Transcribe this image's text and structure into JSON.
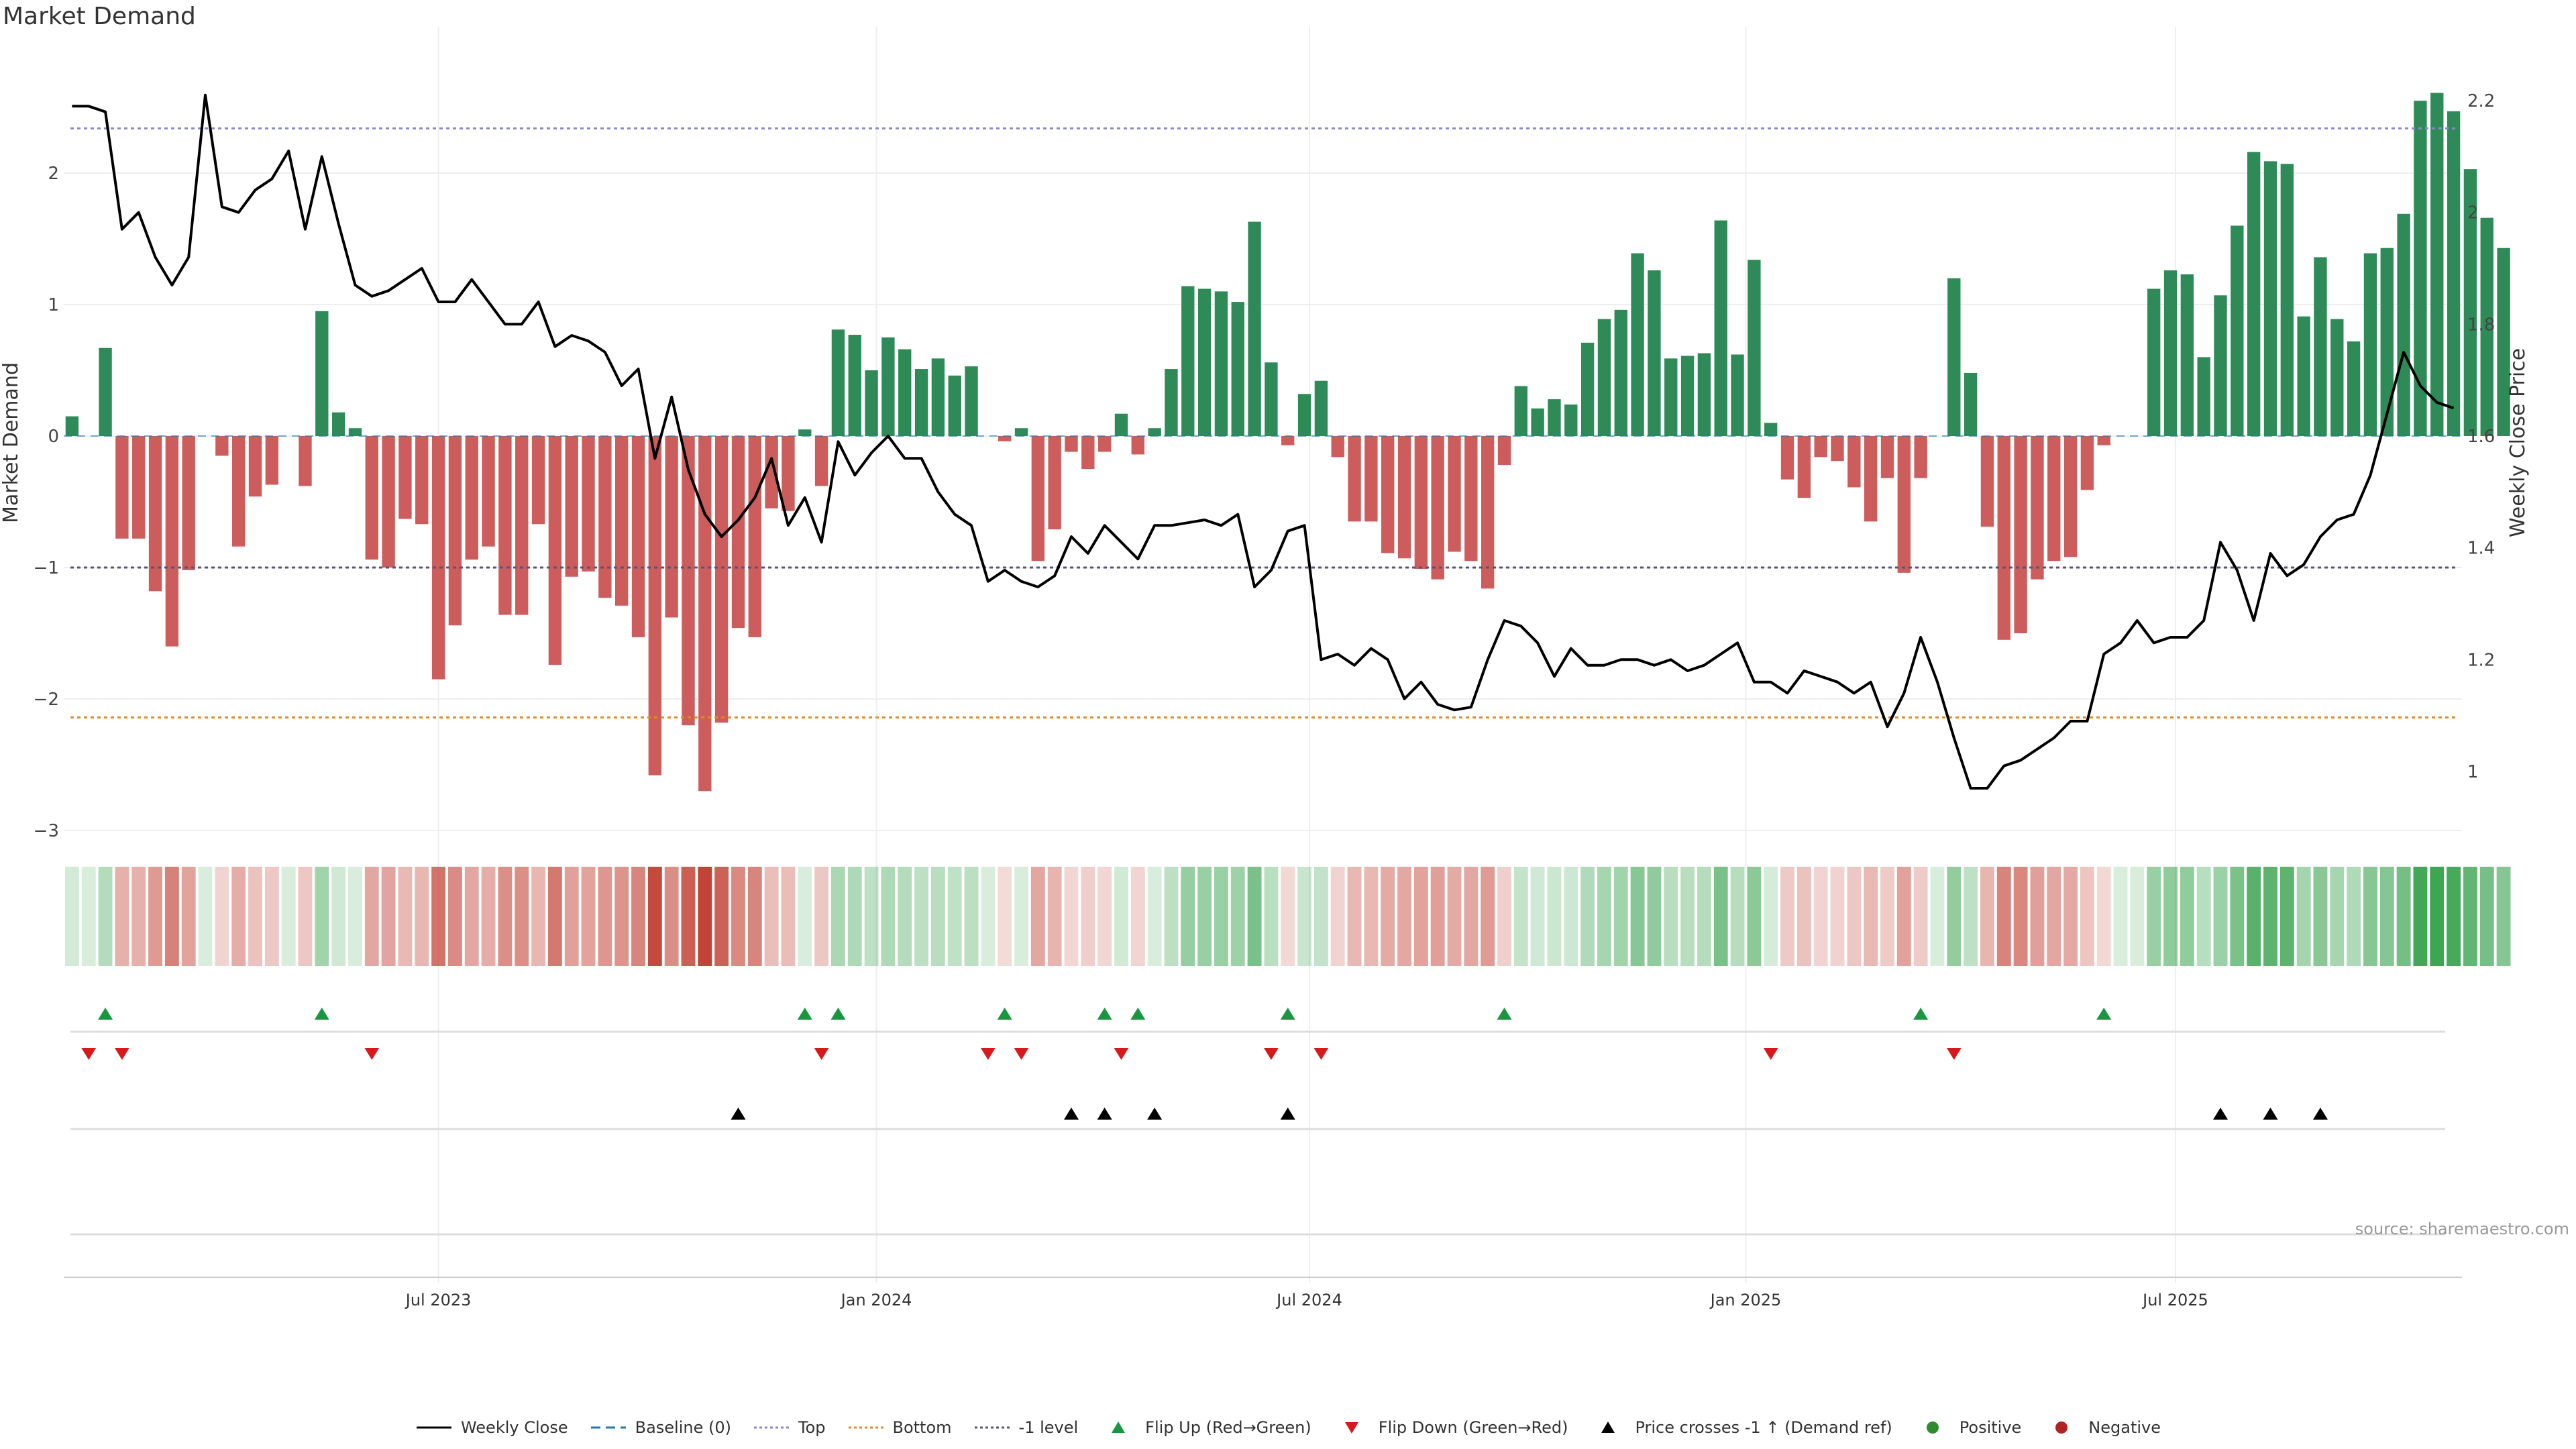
{
  "chart_data": {
    "type": "bar+line",
    "title": "Market Demand",
    "source": "source: sharemaestro.com",
    "left_axis": {
      "label": "Market Demand",
      "range": [
        -3.2,
        2.8
      ],
      "ticks": [
        2,
        1,
        0,
        -1,
        -2,
        -3
      ],
      "tick_labels": [
        "2",
        "1",
        "0",
        "−1",
        "−2",
        "−3"
      ]
    },
    "right_axis": {
      "label": "Weekly Close Price",
      "range": [
        0.915,
        2.27
      ],
      "ticks": [
        2.2,
        2,
        1.8,
        1.6,
        1.4,
        1.2,
        1
      ],
      "tick_labels": [
        "2.2",
        "2",
        "1.8",
        "1.6",
        "1.4",
        "1.2",
        "1"
      ]
    },
    "x_axis": {
      "labels": [
        "Jul 2023",
        "Jan 2024",
        "Jul 2024",
        "Jan 2025",
        "Jul 2025"
      ],
      "label_week_index": [
        22.5,
        48.8,
        74.8,
        101,
        126.8
      ]
    },
    "reference_lines": {
      "top": 2.34,
      "bottom": -2.14,
      "minus1": -1.0,
      "baseline": 0
    },
    "weeks": 144,
    "demand": [
      0.15,
      0,
      0.67,
      -0.78,
      -0.78,
      -1.18,
      -1.6,
      -1.02,
      0,
      -0.15,
      -0.84,
      -0.46,
      -0.37,
      0,
      -0.38,
      0.95,
      0.18,
      0.06,
      -0.94,
      -1.0,
      -0.63,
      -0.67,
      -1.85,
      -1.44,
      -0.94,
      -0.84,
      -1.36,
      -1.36,
      -0.67,
      -1.74,
      -1.07,
      -1.03,
      -1.23,
      -1.29,
      -1.53,
      -2.58,
      -1.38,
      -2.2,
      -2.7,
      -2.18,
      -1.46,
      -1.53,
      -0.55,
      -0.57,
      0.05,
      -0.38,
      0.81,
      0.77,
      0.5,
      0.75,
      0.66,
      0.51,
      0.59,
      0.46,
      0.53,
      0.0,
      -0.04,
      0.06,
      -0.95,
      -0.71,
      -0.12,
      -0.25,
      -0.12,
      0.17,
      -0.14,
      0.06,
      0.51,
      1.14,
      1.12,
      1.1,
      1.02,
      1.63,
      0.56,
      -0.07,
      0.32,
      0.42,
      -0.16,
      -0.65,
      -0.65,
      -0.89,
      -0.93,
      -1.01,
      -1.09,
      -0.88,
      -0.95,
      -1.16,
      -0.22,
      0.38,
      0.21,
      0.28,
      0.24,
      0.71,
      0.89,
      0.96,
      1.39,
      1.26,
      0.59,
      0.61,
      0.63,
      1.64,
      0.62,
      1.34,
      0.1,
      -0.33,
      -0.47,
      -0.16,
      -0.19,
      -0.39,
      -0.65,
      -0.32,
      -1.04,
      -0.32,
      0,
      1.2,
      0.48,
      -0.69,
      -1.55,
      -1.5,
      -1.09,
      -0.95,
      -0.92,
      -0.41,
      -0.07,
      0.0,
      0,
      1.12,
      1.26,
      1.23,
      0.6,
      1.07,
      1.6,
      2.16,
      2.09,
      2.07,
      0.91,
      1.36,
      0.89,
      0.72,
      1.39,
      1.43,
      1.69,
      2.55,
      2.61,
      2.47,
      2.03,
      1.66,
      1.43
    ],
    "close": [
      2.19,
      2.19,
      2.18,
      1.97,
      2.0,
      1.92,
      1.87,
      1.92,
      2.21,
      2.01,
      2.0,
      2.04,
      2.06,
      2.11,
      1.97,
      2.1,
      1.98,
      1.87,
      1.85,
      1.86,
      1.88,
      1.9,
      1.84,
      1.84,
      1.88,
      1.84,
      1.8,
      1.8,
      1.84,
      1.76,
      1.78,
      1.77,
      1.75,
      1.69,
      1.72,
      1.56,
      1.67,
      1.54,
      1.46,
      1.42,
      1.45,
      1.49,
      1.56,
      1.44,
      1.49,
      1.41,
      1.59,
      1.53,
      1.57,
      1.6,
      1.56,
      1.56,
      1.5,
      1.46,
      1.44,
      1.34,
      1.36,
      1.34,
      1.33,
      1.35,
      1.42,
      1.39,
      1.44,
      1.41,
      1.38,
      1.44,
      1.44,
      1.445,
      1.45,
      1.44,
      1.46,
      1.33,
      1.36,
      1.43,
      1.44,
      1.2,
      1.21,
      1.19,
      1.22,
      1.2,
      1.13,
      1.16,
      1.12,
      1.11,
      1.115,
      1.2,
      1.27,
      1.26,
      1.23,
      1.17,
      1.22,
      1.19,
      1.19,
      1.2,
      1.2,
      1.19,
      1.2,
      1.18,
      1.19,
      1.21,
      1.23,
      1.16,
      1.16,
      1.14,
      1.18,
      1.17,
      1.16,
      1.14,
      1.16,
      1.08,
      1.14,
      1.24,
      1.16,
      1.06,
      0.97,
      0.97,
      1.01,
      1.02,
      1.04,
      1.06,
      1.09,
      1.09,
      1.21,
      1.23,
      1.27,
      1.23,
      1.24,
      1.24,
      1.27,
      1.41,
      1.36,
      1.27,
      1.39,
      1.35,
      1.37,
      1.42,
      1.45,
      1.46,
      1.53,
      1.64,
      1.75,
      1.69,
      1.66,
      1.65
    ],
    "flip_up_weeks": [
      2,
      15,
      44,
      46,
      56,
      62,
      64,
      73,
      86,
      111,
      122
    ],
    "flip_down_weeks": [
      1,
      3,
      18,
      45,
      55,
      57,
      63,
      72,
      75,
      102,
      113
    ],
    "price_cross_weeks": [
      40,
      60,
      62,
      65,
      73,
      129,
      132,
      135
    ],
    "colors": {
      "positive": "#2e8b57",
      "negative": "#cd5c5c",
      "line": "#000000",
      "top": "#8888cc",
      "bottom": "#e08a2a",
      "minus1": "#555577",
      "flip_up": "#1a9641",
      "flip_down": "#d7191c",
      "cross": "#000000",
      "pos_dot": "#2e8b2e",
      "neg_dot": "#b22222",
      "baseline": "#1f77b4"
    },
    "legend": [
      {
        "name": "Weekly Close",
        "symbol": "line"
      },
      {
        "name": "Baseline (0)",
        "symbol": "dash"
      },
      {
        "name": "Top",
        "symbol": "dot-purple"
      },
      {
        "name": "Bottom",
        "symbol": "dot-orange"
      },
      {
        "name": "-1 level",
        "symbol": "dot-dark"
      },
      {
        "name": "Flip Up (Red→Green)",
        "symbol": "tri-up-green"
      },
      {
        "name": "Flip Down (Green→Red)",
        "symbol": "tri-down-red"
      },
      {
        "name": "Price crosses -1 ↑ (Demand ref)",
        "symbol": "tri-up-black"
      },
      {
        "name": "Positive",
        "symbol": "circle-green"
      },
      {
        "name": "Negative",
        "symbol": "circle-red"
      }
    ]
  }
}
